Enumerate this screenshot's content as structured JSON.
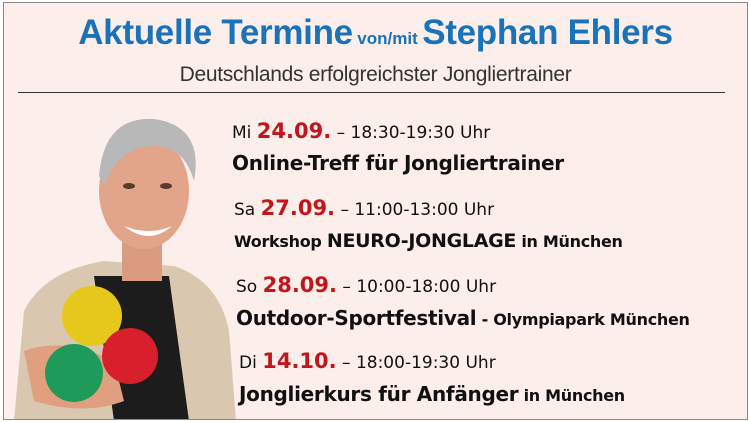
{
  "header": {
    "title_part1": "Aktuelle Termine",
    "title_part2": "von/mit",
    "title_part3": "Stephan Ehlers",
    "subtitle": "Deutschlands erfolgreichster Jongliertrainer"
  },
  "colors": {
    "background": "#fceeea",
    "title": "#1a72b8",
    "date": "#c0161c"
  },
  "events": [
    {
      "day": "Mi",
      "date": "24.09.",
      "time": "– 18:30-19:30 Uhr",
      "title": [
        "Online-Treff für Jongliertrainer"
      ]
    },
    {
      "day": "Sa",
      "date": "27.09.",
      "time": "– 11:00-13:00 Uhr",
      "title": [
        "Workshop",
        "NEURO-JONGLAGE",
        "in München"
      ]
    },
    {
      "day": "So",
      "date": "28.09.",
      "time": "– 10:00-18:00 Uhr",
      "title": [
        "Outdoor-Sportfestival",
        "- Olympiapark München"
      ]
    },
    {
      "day": "Di",
      "date": "14.10.",
      "time": "– 18:00-19:30 Uhr",
      "title": [
        "Jonglierkurs für Anfänger",
        "in München"
      ]
    }
  ]
}
